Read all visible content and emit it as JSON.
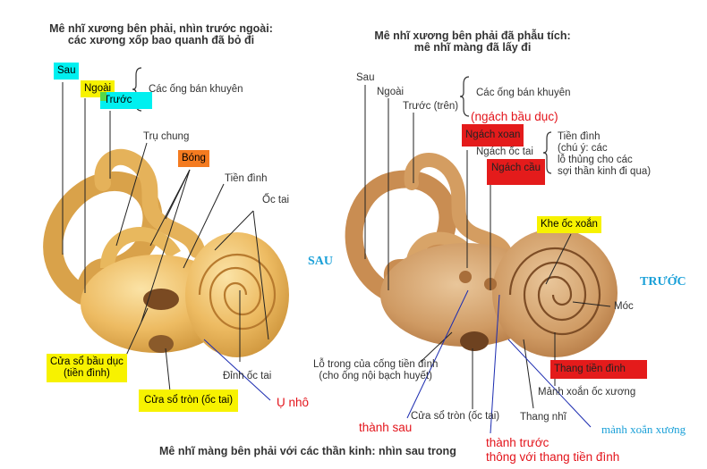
{
  "left_title": {
    "line1": "Mê nhĩ xương bên phải, nhìn trước ngoài:",
    "line2": "các xương xốp bao quanh đã bỏ đi"
  },
  "right_title": {
    "line1": "Mê nhĩ xương bên phải đã phẫu tích:",
    "line2": "mê nhĩ màng đã lấy đi"
  },
  "bottom_caption": "Mê nhĩ màng bên phải với các thần kinh: nhìn sau trong",
  "left_labels": {
    "sau": "Sau",
    "ngoai": "Ngoài",
    "truoc": "Trước",
    "semicircular": "Các ống bán khuyên",
    "tru_chung": "Trụ chung",
    "bong": "Bóng",
    "tien_dinh": "Tiền đình",
    "oc_tai": "Ốc tai",
    "cua_so_bau_duc_1": "Cửa sổ bầu dục",
    "cua_so_bau_duc_2": "(tiền đình)",
    "cua_so_tron": "Cửa sổ tròn (ốc tai)",
    "dinh_oc_tai": "Đỉnh ốc tai",
    "u_nho": "Ụ nhô"
  },
  "right_labels": {
    "sau": "Sau",
    "ngoai": "Ngoài",
    "truoc_tren": "Trước (trên)",
    "semicircular": "Các ống bán khuyên",
    "ngach_bau_duc": "(ngách bầu dục)",
    "ngach_xoan": "Ngách xoan",
    "ngach_oc_tai": "Ngách ốc tai",
    "ngach_cau": "Ngách cầu",
    "tien_dinh_1": "Tiền đình",
    "tien_dinh_2": "(chú ý: các",
    "tien_dinh_3": "lỗ thủng cho các",
    "tien_dinh_4": "sợi thần kinh đi qua)",
    "khe_oc_xoan": "Khe ốc xoắn",
    "moc": "Móc",
    "thang_tien_dinh": "Thang tiền đình",
    "manh_xoan_oc_xuong": "Mảnh xoắn ốc xương",
    "thang_nhi": "Thang nhĩ",
    "lo_trong_1": "Lỗ trong của cống tiền đình",
    "lo_trong_2": "(cho ống nội bạch huyết)",
    "cua_so_tron": "Cửa sổ tròn (ốc tai)"
  },
  "side_labels": {
    "sau": "SAU",
    "truoc": "TRƯỚC"
  },
  "annotations": {
    "thanh_sau": "thành sau",
    "thanh_truoc_1": "thành trước",
    "thanh_truoc_2": "thông với thang tiền đình",
    "manh_xoan_xuong": "mảnh xoắn xương"
  },
  "colors": {
    "cyan": "#00f0f0",
    "yellow": "#f7f200",
    "orange": "#f47b20",
    "red": "#e41b1b",
    "bone": "#ecbd62",
    "side_blue": "#1aa0d8"
  }
}
